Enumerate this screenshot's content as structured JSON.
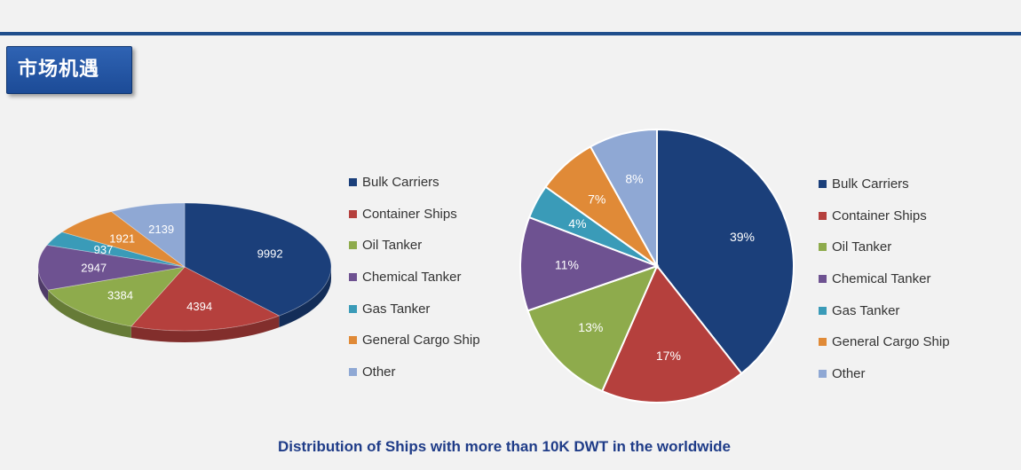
{
  "header": {
    "section_title": "市场机遇"
  },
  "footer": {
    "caption": "Distribution of Ships with more than 10K DWT in the worldwide"
  },
  "chart_data": [
    {
      "type": "pie",
      "style": "3d",
      "categories": [
        "Bulk Carriers",
        "Container Ships",
        "Oil Tanker",
        "Chemical Tanker",
        "Gas Tanker",
        "General Cargo Ship",
        "Other"
      ],
      "values": [
        9992,
        4394,
        3384,
        2947,
        937,
        1921,
        2139
      ],
      "labels": [
        "9992",
        "4394",
        "3384",
        "2947",
        "937",
        "1921",
        "2139"
      ],
      "colors": [
        "#1b3f7a",
        "#b5403d",
        "#8eab4c",
        "#6e5291",
        "#3a9bb8",
        "#e08a37",
        "#8fa8d4"
      ],
      "legend_position": "right"
    },
    {
      "type": "pie",
      "categories": [
        "Bulk Carriers",
        "Container Ships",
        "Oil Tanker",
        "Chemical Tanker",
        "Gas Tanker",
        "General Cargo Ship",
        "Other"
      ],
      "values": [
        39,
        17,
        13,
        11,
        4,
        7,
        8
      ],
      "labels": [
        "39%",
        "17%",
        "13%",
        "11%",
        "4%",
        "7%",
        "8%"
      ],
      "colors": [
        "#1b3f7a",
        "#b5403d",
        "#8eab4c",
        "#6e5291",
        "#3a9bb8",
        "#e08a37",
        "#8fa8d4"
      ],
      "legend_position": "right"
    }
  ]
}
